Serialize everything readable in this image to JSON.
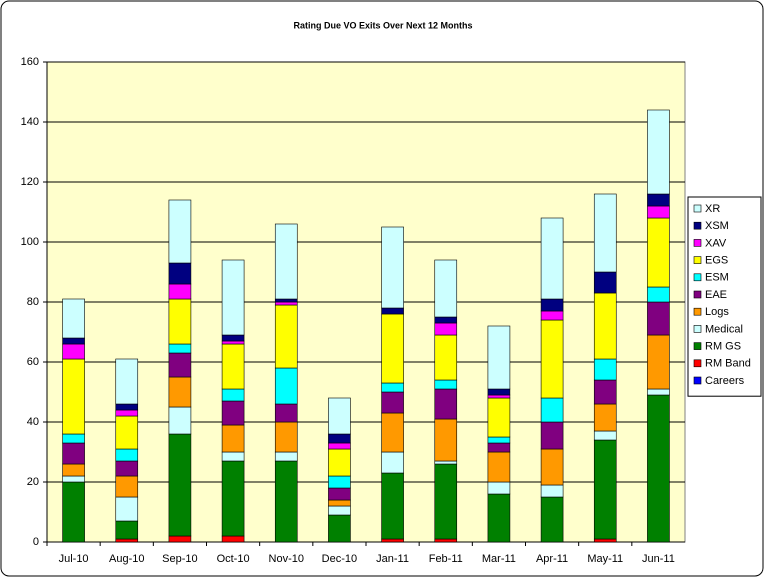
{
  "chart_data": {
    "type": "stacked_bar",
    "title": "Rating Due VO Exits Over Next 12 Months",
    "categories": [
      "Jul-10",
      "Aug-10",
      "Sep-10",
      "Oct-10",
      "Nov-10",
      "Dec-10",
      "Jan-11",
      "Feb-11",
      "Mar-11",
      "Apr-11",
      "May-11",
      "Jun-11"
    ],
    "series": [
      {
        "name": "Careers",
        "color": "#0000ff",
        "values": [
          0,
          0,
          0,
          0,
          0,
          0,
          0,
          0,
          0,
          0,
          0,
          0
        ]
      },
      {
        "name": "RM Band",
        "color": "#ff0000",
        "values": [
          0,
          1,
          2,
          2,
          0,
          0,
          1,
          1,
          0,
          0,
          1,
          0
        ]
      },
      {
        "name": "RM GS",
        "color": "#008000",
        "values": [
          20,
          6,
          34,
          25,
          27,
          9,
          22,
          25,
          16,
          15,
          33,
          49
        ]
      },
      {
        "name": "Medical",
        "color": "#ccffff",
        "values": [
          2,
          8,
          9,
          3,
          3,
          3,
          7,
          1,
          4,
          4,
          3,
          2
        ]
      },
      {
        "name": "Logs",
        "color": "#ff9900",
        "values": [
          4,
          7,
          10,
          9,
          10,
          2,
          13,
          14,
          10,
          12,
          9,
          18
        ]
      },
      {
        "name": "EAE",
        "color": "#800080",
        "values": [
          7,
          5,
          8,
          8,
          6,
          4,
          7,
          10,
          3,
          9,
          8,
          11
        ]
      },
      {
        "name": "ESM",
        "color": "#00ffff",
        "values": [
          3,
          4,
          3,
          4,
          12,
          4,
          3,
          3,
          2,
          8,
          7,
          5
        ]
      },
      {
        "name": "EGS",
        "color": "#ffff00",
        "values": [
          25,
          11,
          15,
          15,
          21,
          9,
          23,
          15,
          13,
          26,
          22,
          23
        ]
      },
      {
        "name": "XAV",
        "color": "#ff00ff",
        "values": [
          5,
          2,
          5,
          1,
          1,
          2,
          0,
          4,
          1,
          3,
          0,
          4
        ]
      },
      {
        "name": "XSM",
        "color": "#000080",
        "values": [
          2,
          2,
          7,
          2,
          1,
          3,
          2,
          2,
          2,
          4,
          7,
          4
        ]
      },
      {
        "name": "XR",
        "color": "#ccffff",
        "values": [
          13,
          15,
          21,
          25,
          25,
          12,
          27,
          19,
          21,
          27,
          26,
          28
        ]
      }
    ],
    "ylim": [
      0,
      160
    ],
    "yticks": [
      0,
      20,
      40,
      60,
      80,
      100,
      120,
      140,
      160
    ],
    "grid": true,
    "legend": "right"
  }
}
